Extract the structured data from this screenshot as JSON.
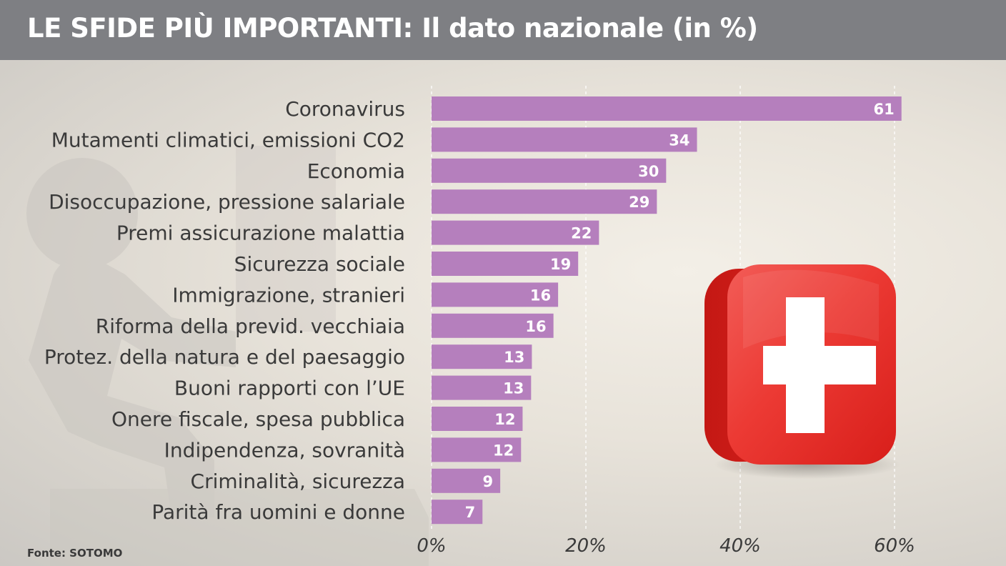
{
  "header": {
    "title": "LE SFIDE PIÙ IMPORTANTI: Il dato nazionale (in %)"
  },
  "footer": {
    "source": "Fonte: SOTOMO"
  },
  "decoration": {
    "icon": "swiss-flag-cube-icon",
    "background_figure": "person-silhouette-icon",
    "flag_red": "#e8231f",
    "flag_white": "#ffffff"
  },
  "chart_data": {
    "type": "bar",
    "orientation": "horizontal",
    "title": "LE SFIDE PIÙ IMPORTANTI: Il dato nazionale (in %)",
    "categories": [
      "Coronavirus",
      "Mutamenti climatici, emissioni CO2",
      "Economia",
      "Disoccupazione, pressione salariale",
      "Premi assicurazione malattia",
      "Sicurezza sociale",
      "Immigrazione, stranieri",
      "Riforma della previd. vecchiaia",
      "Protez. della natura e del paesaggio",
      "Buoni rapporti con l’UE",
      "Onere fiscale, spesa pubblica",
      "Indipendenza, sovranità",
      "Criminalità, sicurezza",
      "Parità fra uomini e donne"
    ],
    "values": [
      61,
      34,
      30,
      29,
      22,
      19,
      16,
      16,
      13,
      13,
      12,
      12,
      9,
      7
    ],
    "value_labels": [
      "61",
      "34",
      "30",
      "29",
      "22",
      "19",
      "16",
      "16",
      "13",
      "13",
      "12",
      "12",
      "9",
      "7"
    ],
    "exact_values": [
      60.9,
      34.4,
      30.4,
      29.2,
      21.7,
      19.0,
      16.4,
      15.8,
      13.0,
      12.9,
      11.8,
      11.6,
      8.9,
      6.6
    ],
    "xticks": [
      0,
      20,
      40,
      60
    ],
    "xtick_labels": [
      "0%",
      "20%",
      "40%",
      "60%"
    ],
    "xlim": [
      0,
      70
    ],
    "xlabel": "",
    "ylabel": "",
    "grid": "vertical",
    "bar_color": "#b57fbd",
    "legend": "none"
  }
}
